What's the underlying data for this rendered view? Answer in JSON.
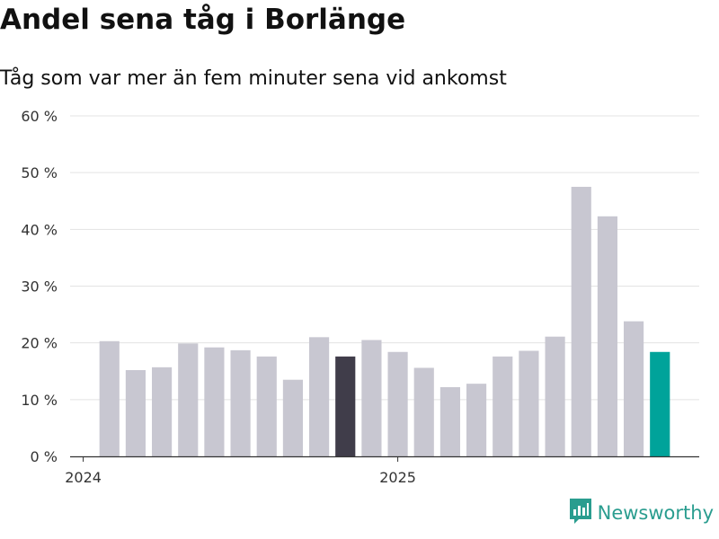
{
  "title": "Andel sena tåg i Borlänge",
  "subtitle": "Tåg som var mer än fem minuter sena vid ankomst",
  "brand": {
    "name": "Newsworthy",
    "color": "#2a9d8f",
    "icon": "newsworthy-logo-icon"
  },
  "colors": {
    "default_bar": "#c8c7d1",
    "highlight_bar": "#403d4a",
    "latest_bar": "#00a39a",
    "grid": "#e3e3e3",
    "axis": "#333333"
  },
  "chart_data": {
    "type": "bar",
    "title": "Andel sena tåg i Borlänge",
    "subtitle": "Tåg som var mer än fem minuter sena vid ankomst",
    "ylim": [
      0,
      60
    ],
    "yticks": [
      0,
      10,
      20,
      30,
      40,
      50,
      60
    ],
    "ytick_labels": [
      "0 %",
      "10 %",
      "20 %",
      "30 %",
      "40 %",
      "50 %",
      "60 %"
    ],
    "x_ticks": [
      {
        "label": "2024",
        "index": 0
      },
      {
        "label": "2025",
        "index": 12
      }
    ],
    "grid": true,
    "categories": [
      "2024-01",
      "2024-02",
      "2024-03",
      "2024-04",
      "2024-05",
      "2024-06",
      "2024-07",
      "2024-08",
      "2024-09",
      "2024-10",
      "2024-11",
      "2024-12",
      "2025-01",
      "2025-02",
      "2025-03",
      "2025-04",
      "2025-05",
      "2025-06",
      "2025-07",
      "2025-08",
      "2025-09",
      "2025-10",
      "2025-11",
      "2025-12"
    ],
    "values": [
      null,
      20.3,
      15.2,
      15.7,
      19.9,
      19.2,
      18.7,
      17.6,
      13.5,
      21.0,
      17.6,
      20.5,
      18.4,
      15.6,
      12.2,
      12.8,
      17.6,
      18.6,
      21.1,
      47.5,
      42.3,
      23.8,
      18.4,
      null
    ],
    "highlight_index": 10,
    "latest_index": 22
  }
}
